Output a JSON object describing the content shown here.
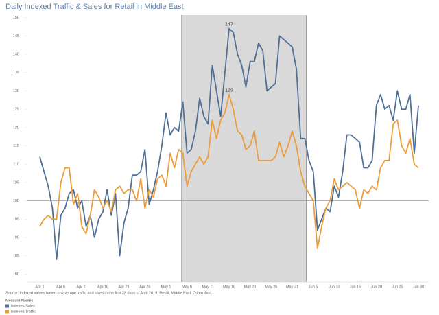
{
  "chart_data": {
    "type": "line",
    "title": "Daily Indexed Traffic & Sales for Retail in Middle East",
    "note": "Source: Indexed values based on average traffic and sales in the first 28 days of April 2019. Retail, Middle East. Criteo data.",
    "legend_title": "Measure Names",
    "categories": [
      "Apr 1",
      null,
      null,
      null,
      null,
      "Apr 6",
      null,
      null,
      null,
      null,
      "Apr 11",
      null,
      null,
      null,
      null,
      "Apr 16",
      null,
      null,
      null,
      null,
      "Apr 21",
      null,
      null,
      null,
      null,
      "Apr 26",
      null,
      null,
      null,
      null,
      "May 1",
      null,
      null,
      null,
      null,
      "May 6",
      null,
      null,
      null,
      null,
      "May 11",
      null,
      null,
      null,
      null,
      "May 16",
      null,
      null,
      null,
      null,
      "May 21",
      null,
      null,
      null,
      null,
      "May 26",
      null,
      null,
      null,
      null,
      "May 31",
      null,
      null,
      null,
      null,
      "Jun 5",
      null,
      null,
      null,
      null,
      "Jun 10",
      null,
      null,
      null,
      null,
      "Jun 15",
      null,
      null,
      null,
      null,
      "Jun 20",
      null,
      null,
      null,
      null,
      "Jun 25",
      null,
      null,
      null,
      null,
      "Jun 30"
    ],
    "series": [
      {
        "name": "Indexed Sales",
        "color": "#4f6f94",
        "values": [
          112,
          108,
          104,
          98,
          84,
          96,
          98,
          102,
          103,
          98,
          100,
          93,
          96,
          90,
          95,
          97,
          103,
          96,
          102,
          85,
          94,
          98,
          107,
          107,
          108,
          114,
          99,
          103,
          108,
          115,
          124,
          118,
          120,
          119,
          127,
          113,
          114,
          119,
          128,
          123,
          121,
          137,
          130,
          123,
          135,
          147,
          146,
          140,
          137,
          131,
          138,
          138,
          143,
          141,
          130,
          131,
          132,
          145,
          144,
          143,
          142,
          136,
          117,
          117,
          111,
          108,
          92,
          95,
          98,
          97,
          104,
          101,
          108,
          118,
          118,
          117,
          116,
          109,
          109,
          111,
          126,
          129,
          125,
          126,
          122,
          130,
          125,
          125,
          129,
          113,
          126
        ],
        "value_labels": [
          null,
          null,
          null,
          null,
          null,
          null,
          null,
          null,
          null,
          null,
          null,
          null,
          null,
          null,
          null,
          null,
          null,
          null,
          null,
          null,
          null,
          null,
          null,
          null,
          null,
          null,
          null,
          null,
          null,
          null,
          null,
          null,
          null,
          null,
          null,
          null,
          null,
          null,
          null,
          null,
          null,
          null,
          null,
          null,
          null,
          "147",
          null,
          null,
          null,
          null,
          null,
          null,
          null,
          null,
          null,
          null,
          null,
          null,
          null,
          null,
          null,
          null,
          null,
          null,
          null,
          null,
          null,
          null,
          null,
          null,
          null,
          null,
          null,
          null,
          null,
          null,
          null,
          null,
          null,
          null,
          null,
          null,
          null,
          null,
          null,
          null,
          null,
          null,
          null,
          null,
          null
        ]
      },
      {
        "name": "Indexed Traffic",
        "color": "#ec9b3b",
        "values": [
          93,
          95,
          96,
          95,
          95,
          105,
          109,
          109,
          99,
          102,
          93,
          91,
          96,
          103,
          101,
          98,
          100,
          97,
          103,
          104,
          102,
          103,
          103,
          100,
          106,
          98,
          103,
          101,
          106,
          107,
          104,
          113,
          109,
          114,
          113,
          104,
          108,
          110,
          112,
          110,
          112,
          122,
          117,
          122,
          124,
          129,
          125,
          119,
          118,
          114,
          115,
          119,
          111,
          111,
          111,
          111,
          112,
          116,
          112,
          115,
          119,
          115,
          108,
          104,
          102,
          100,
          87,
          93,
          98,
          100,
          106,
          103,
          104,
          105,
          104,
          103,
          98,
          103,
          102,
          104,
          103,
          109,
          111,
          111,
          121,
          122,
          115,
          113,
          117,
          110,
          109
        ],
        "value_labels": [
          null,
          null,
          null,
          null,
          null,
          null,
          null,
          null,
          null,
          null,
          null,
          null,
          null,
          null,
          null,
          null,
          null,
          null,
          null,
          null,
          null,
          null,
          null,
          null,
          null,
          null,
          null,
          null,
          null,
          null,
          null,
          null,
          null,
          null,
          null,
          null,
          null,
          null,
          null,
          null,
          null,
          null,
          null,
          null,
          null,
          "129",
          null,
          null,
          null,
          null,
          null,
          null,
          null,
          null,
          null,
          null,
          null,
          null,
          null,
          null,
          null,
          null,
          null,
          null,
          null,
          null,
          null,
          null,
          null,
          null,
          null,
          null,
          null,
          null,
          null,
          null,
          null,
          null,
          null,
          null,
          null,
          null,
          null,
          null,
          null,
          null,
          null,
          null,
          null,
          null,
          null
        ]
      }
    ],
    "ylim": [
      78,
      152
    ],
    "yticks": [
      80,
      85,
      90,
      95,
      100,
      105,
      110,
      115,
      120,
      125,
      130,
      135,
      140,
      145,
      150
    ],
    "reference_line": 100,
    "grid": false
  }
}
